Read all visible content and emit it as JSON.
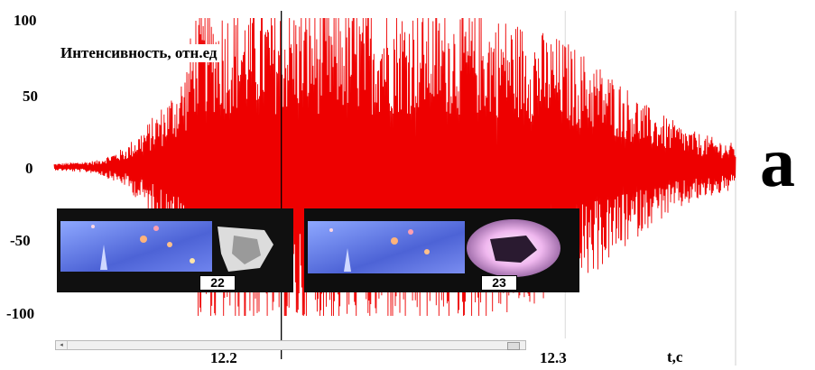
{
  "chart_data": {
    "type": "line",
    "ylabel": "Интенсивность, отн.ед",
    "xlabel": "t,c",
    "y_ticks": [
      "100",
      "50",
      "0",
      "-50",
      "-100"
    ],
    "x_ticks": [
      "12.2",
      "12.3"
    ],
    "ylim": [
      -100,
      100
    ],
    "xlim": [
      12.12,
      12.36
    ],
    "x_tick_values": [
      12.2,
      12.3
    ],
    "y_tick_values": [
      100,
      50,
      0,
      -50,
      -100
    ],
    "grid": "vertical",
    "series": [
      {
        "color": "#ee0000",
        "envelope": {
          "t": [
            12.12,
            12.135,
            12.145,
            12.152,
            12.16,
            12.166,
            12.17,
            12.175,
            12.185,
            12.2,
            12.22,
            12.24,
            12.26,
            12.28,
            12.29,
            12.3,
            12.31,
            12.32,
            12.33,
            12.345,
            12.36
          ],
          "amplitude": [
            2,
            4,
            12,
            25,
            42,
            60,
            100,
            100,
            100,
            100,
            100,
            100,
            98,
            92,
            85,
            78,
            66,
            52,
            36,
            22,
            14
          ]
        }
      }
    ],
    "markers": [
      {
        "t": 12.2,
        "type": "vertical-line"
      }
    ]
  },
  "insets": [
    {
      "frame": "22"
    },
    {
      "frame": "23"
    }
  ],
  "panel_label": "a",
  "colors": {
    "signal": "#ee0000",
    "background": "#ffffff",
    "grid": "#d9d9d9"
  }
}
